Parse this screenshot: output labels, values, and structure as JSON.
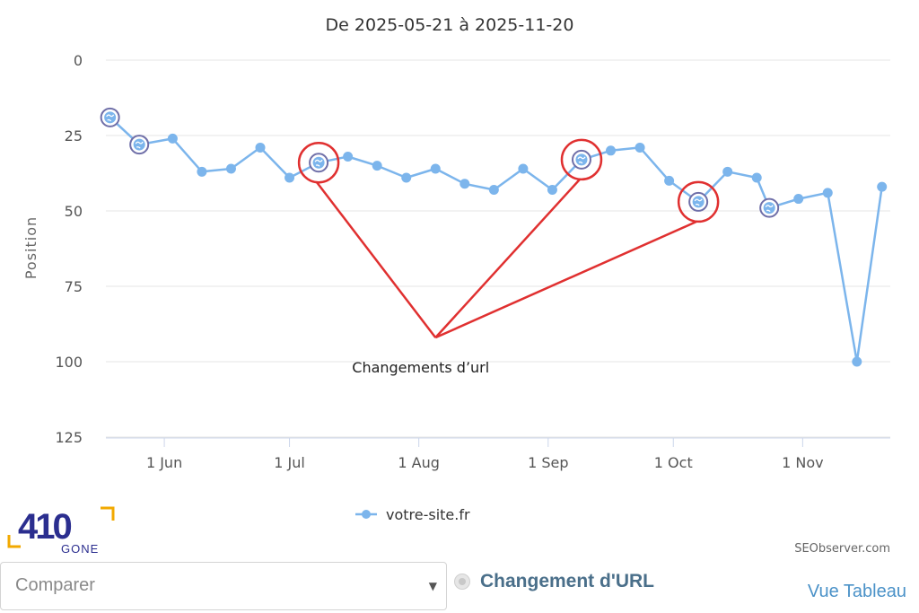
{
  "chart_data": {
    "type": "line",
    "title": "De 2025-05-21 à 2025-11-20",
    "ylabel": "Position",
    "xlabel": "",
    "y_reversed": true,
    "ylim": [
      0,
      125
    ],
    "y_ticks": [
      "0",
      "25",
      "50",
      "75",
      "100",
      "125"
    ],
    "xlim": [
      "2025-05-18",
      "2025-11-22"
    ],
    "x_ticks": [
      {
        "date": "2025-06-01",
        "label": "1 Jun"
      },
      {
        "date": "2025-07-01",
        "label": "1 Jul"
      },
      {
        "date": "2025-08-01",
        "label": "1 Aug"
      },
      {
        "date": "2025-09-01",
        "label": "1 Sep"
      },
      {
        "date": "2025-10-01",
        "label": "1 Oct"
      },
      {
        "date": "2025-11-01",
        "label": "1 Nov"
      }
    ],
    "grid": true,
    "series": [
      {
        "name": "votre-site.fr",
        "color": "#7cb5ec",
        "points": [
          {
            "x": "2025-05-19",
            "y": 19,
            "url_change": true
          },
          {
            "x": "2025-05-26",
            "y": 28,
            "url_change": true
          },
          {
            "x": "2025-06-03",
            "y": 26
          },
          {
            "x": "2025-06-10",
            "y": 37
          },
          {
            "x": "2025-06-17",
            "y": 36
          },
          {
            "x": "2025-06-24",
            "y": 29
          },
          {
            "x": "2025-07-01",
            "y": 39
          },
          {
            "x": "2025-07-08",
            "y": 34,
            "url_change": true
          },
          {
            "x": "2025-07-15",
            "y": 32
          },
          {
            "x": "2025-07-22",
            "y": 35
          },
          {
            "x": "2025-07-29",
            "y": 39
          },
          {
            "x": "2025-08-05",
            "y": 36
          },
          {
            "x": "2025-08-12",
            "y": 41
          },
          {
            "x": "2025-08-19",
            "y": 43
          },
          {
            "x": "2025-08-26",
            "y": 36
          },
          {
            "x": "2025-09-02",
            "y": 43
          },
          {
            "x": "2025-09-09",
            "y": 33,
            "url_change": true
          },
          {
            "x": "2025-09-16",
            "y": 30
          },
          {
            "x": "2025-09-23",
            "y": 29
          },
          {
            "x": "2025-09-30",
            "y": 40
          },
          {
            "x": "2025-10-07",
            "y": 47,
            "url_change": true
          },
          {
            "x": "2025-10-14",
            "y": 37
          },
          {
            "x": "2025-10-21",
            "y": 39
          },
          {
            "x": "2025-10-24",
            "y": 49,
            "url_change": true
          },
          {
            "x": "2025-10-31",
            "y": 46
          },
          {
            "x": "2025-11-07",
            "y": 44
          },
          {
            "x": "2025-11-14",
            "y": 100
          },
          {
            "x": "2025-11-20",
            "y": 42
          }
        ]
      }
    ],
    "legend_position": "bottom-center",
    "annotation": {
      "text": "Changements d’url",
      "color": "#e03030",
      "circled_points": [
        "2025-07-08",
        "2025-09-09",
        "2025-10-07"
      ]
    },
    "credit": "SEObserver.com"
  },
  "logo": {
    "main": "410",
    "sub": "GONE",
    "accent_color": "#f2a900",
    "brand_color": "#2b2e8f"
  },
  "controls": {
    "compare_placeholder": "Comparer",
    "url_change_toggle": "Changement d'URL",
    "table_view_link": "Vue Tableau"
  }
}
